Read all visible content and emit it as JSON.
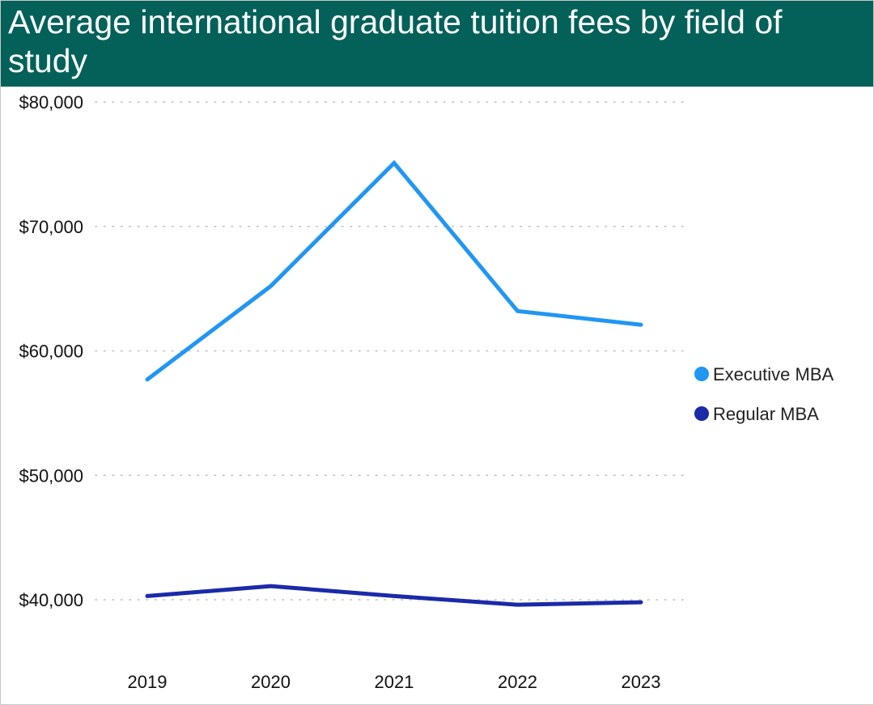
{
  "chart_data": {
    "type": "line",
    "title": "Average international graduate tuition fees by field of study",
    "xlabel": "",
    "ylabel": "",
    "categories": [
      "2019",
      "2020",
      "2021",
      "2022",
      "2023"
    ],
    "y_ticks": [
      40000,
      50000,
      60000,
      70000,
      80000
    ],
    "y_tick_labels": [
      "$40,000",
      "$50,000",
      "$60,000",
      "$70,000",
      "$80,000"
    ],
    "ylim": [
      40000,
      80000
    ],
    "grid": true,
    "legend_position": "right",
    "series": [
      {
        "name": "Executive MBA",
        "color": "#2196f3",
        "values": [
          57700,
          65200,
          75100,
          63200,
          62100
        ]
      },
      {
        "name": "Regular MBA",
        "color": "#1a2aa8",
        "values": [
          40300,
          41100,
          40300,
          39600,
          39800
        ]
      }
    ]
  },
  "colors": {
    "header_bg": "#03615a",
    "grid": "#bdbdbd"
  }
}
